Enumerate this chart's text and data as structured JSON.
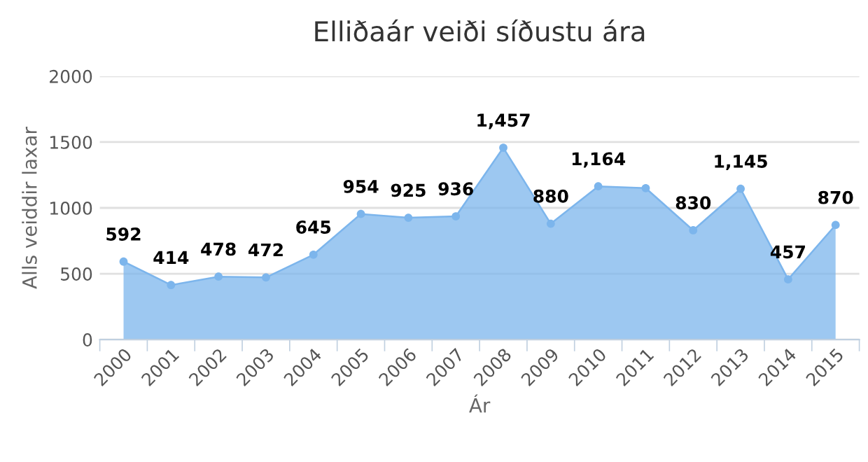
{
  "chart_data": {
    "type": "area",
    "title": "Elliðaár veiði síðustu ára",
    "xlabel": "Ár",
    "ylabel": "Alls veiddir laxar",
    "categories": [
      "2000",
      "2001",
      "2002",
      "2003",
      "2004",
      "2005",
      "2006",
      "2007",
      "2008",
      "2009",
      "2010",
      "2011",
      "2012",
      "2013",
      "2014",
      "2015"
    ],
    "series": [
      {
        "color": "#7cb5ec",
        "values": [
          592,
          414,
          478,
          472,
          645,
          954,
          925,
          936,
          1457,
          880,
          1164,
          1150,
          830,
          1145,
          457,
          870
        ],
        "value_labels": [
          "592",
          "414",
          "478",
          "472",
          "645",
          "954",
          "925",
          "936",
          "1,457",
          "880",
          "1,164",
          null,
          "830",
          "1,145",
          "457",
          "870"
        ]
      }
    ],
    "ylim": [
      0,
      2000
    ],
    "yticks": [
      0,
      500,
      1000,
      1500,
      2000
    ],
    "grid": "y",
    "legend": false,
    "marker": "circle",
    "line_style": "solid"
  }
}
